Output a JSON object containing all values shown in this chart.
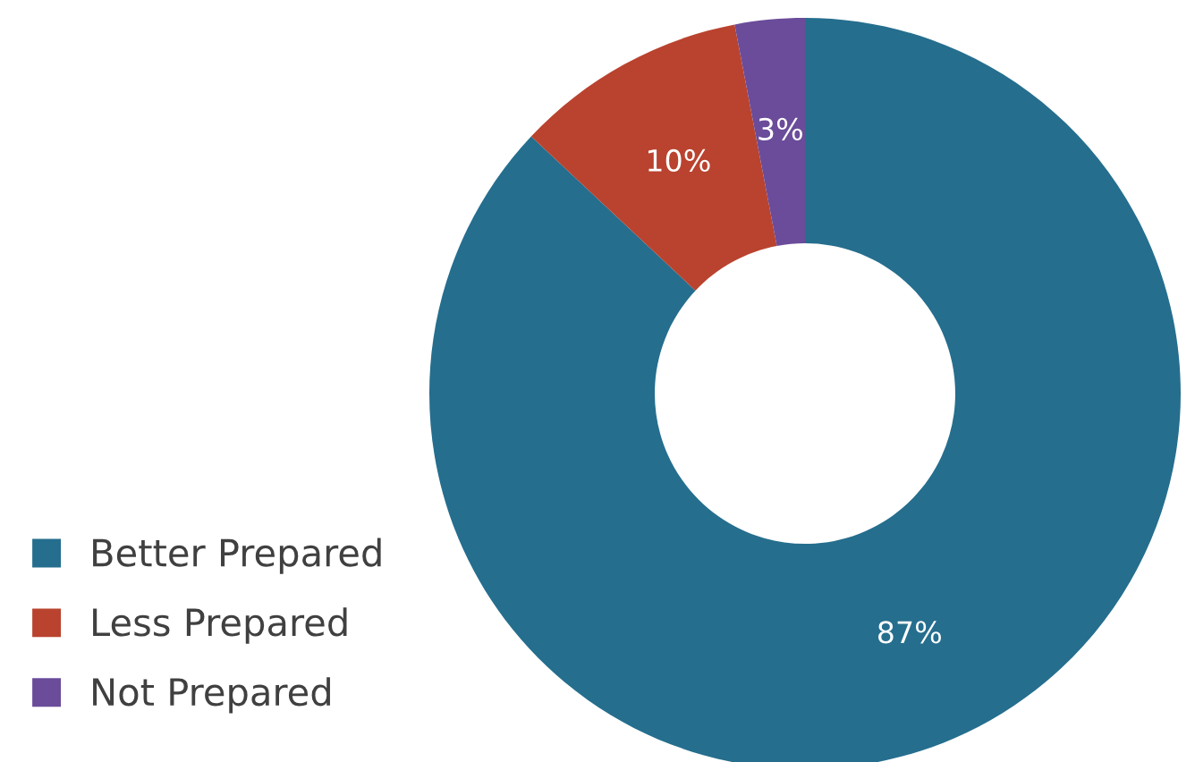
{
  "chart_data": {
    "type": "donut",
    "categories": [
      "Better Prepared",
      "Less Prepared",
      "Not Prepared"
    ],
    "values": [
      87,
      10,
      3
    ],
    "colors": [
      "#256e8e",
      "#b9432f",
      "#6a4c9a"
    ],
    "value_labels": [
      "87%",
      "10%",
      "3%"
    ],
    "legend": "left"
  }
}
